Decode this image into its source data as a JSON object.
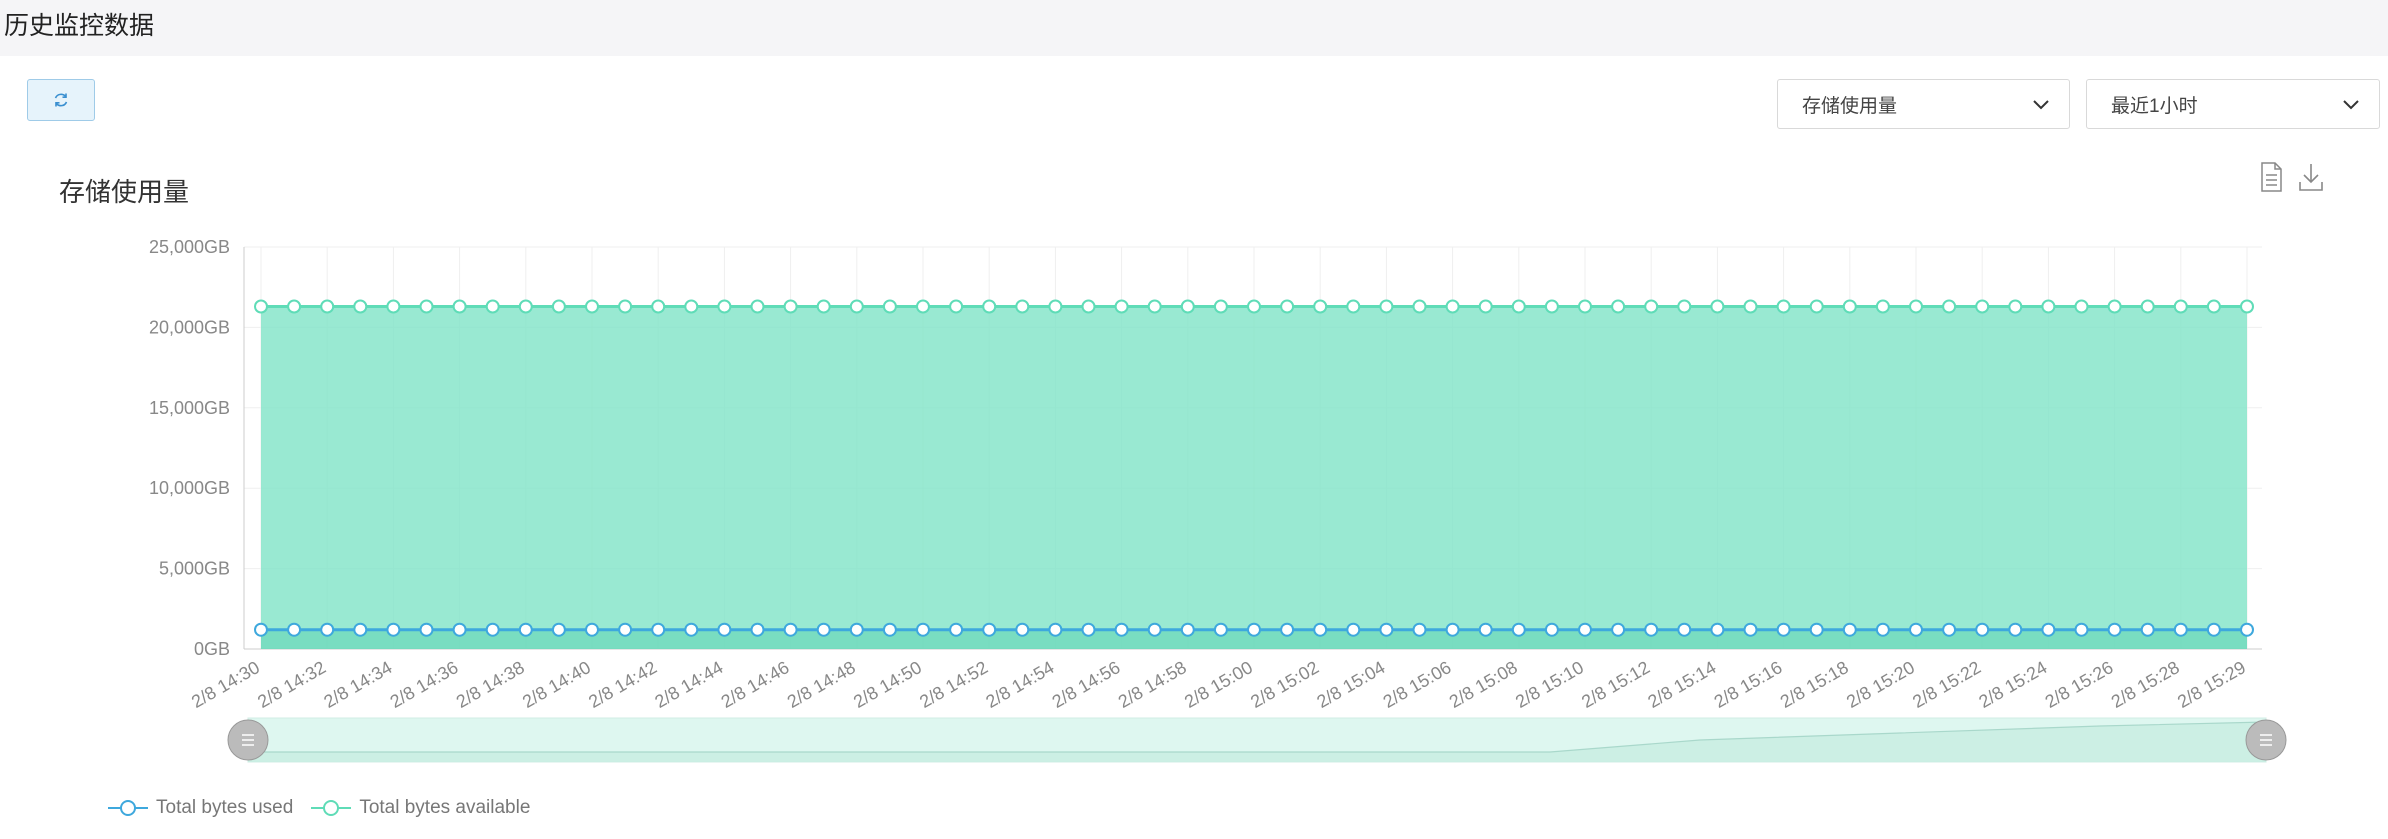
{
  "page": {
    "title": "历史监控数据"
  },
  "toolbar": {
    "refresh_icon": "refresh-icon",
    "metric_select": {
      "value": "存储使用量"
    },
    "range_select": {
      "value": "最近1小时"
    }
  },
  "chart_tools": {
    "data_view_icon": "document-icon",
    "save_icon": "download-icon"
  },
  "colors": {
    "used": "#3ea8dd",
    "available_line": "#5fdcb7",
    "available_fill": "#7fe3c7",
    "grid": "#efefef"
  },
  "chart_data": {
    "type": "area",
    "title": "存储使用量",
    "xlabel": "",
    "ylabel": "",
    "ylim": [
      0,
      25000
    ],
    "yticks": [
      "0GB",
      "5,000GB",
      "10,000GB",
      "15,000GB",
      "20,000GB",
      "25,000GB"
    ],
    "ytick_values": [
      0,
      5000,
      10000,
      15000,
      20000,
      25000
    ],
    "xticks": [
      "2/8 14:30",
      "2/8 14:32",
      "2/8 14:34",
      "2/8 14:36",
      "2/8 14:38",
      "2/8 14:40",
      "2/8 14:42",
      "2/8 14:44",
      "2/8 14:46",
      "2/8 14:48",
      "2/8 14:50",
      "2/8 14:52",
      "2/8 14:54",
      "2/8 14:56",
      "2/8 14:58",
      "2/8 15:00",
      "2/8 15:02",
      "2/8 15:04",
      "2/8 15:06",
      "2/8 15:08",
      "2/8 15:10",
      "2/8 15:12",
      "2/8 15:14",
      "2/8 15:16",
      "2/8 15:18",
      "2/8 15:20",
      "2/8 15:22",
      "2/8 15:24",
      "2/8 15:26",
      "2/8 15:28",
      "2/8 15:29"
    ],
    "point_count": 61,
    "grid": true,
    "legend_position": "bottom-left",
    "series": [
      {
        "name": "Total bytes used",
        "value": 1200
      },
      {
        "name": "Total bytes available",
        "value": 21300
      }
    ],
    "data_zoom": {
      "start": 0,
      "end": 100
    }
  }
}
